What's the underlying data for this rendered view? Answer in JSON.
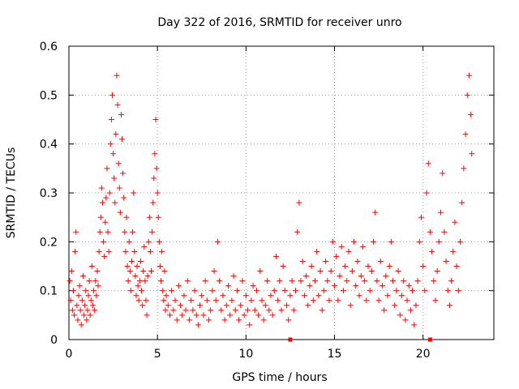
{
  "chart_data": {
    "type": "scatter",
    "title": "Day 322 of 2016, SRMTID for receiver unro",
    "xlabel": "GPS time / hours",
    "ylabel": "SRMTID / TECUs",
    "xlim": [
      0,
      24
    ],
    "ylim": [
      0,
      0.6
    ],
    "x_ticks": [
      0,
      5,
      10,
      15,
      20
    ],
    "x_tick_labels": [
      "0",
      "5",
      "10",
      "15",
      "20"
    ],
    "y_ticks": [
      0,
      0.1,
      0.2,
      0.3,
      0.4,
      0.5,
      0.6
    ],
    "y_tick_labels": [
      "0",
      "0.1",
      "0.2",
      "0.3",
      "0.4",
      "0.5",
      "0.6"
    ],
    "grid": true,
    "marker": "plus",
    "color": "#ff0000",
    "series": [
      {
        "name": "SRMTID",
        "points": [
          [
            0.05,
            0.12
          ],
          [
            0.1,
            0.08
          ],
          [
            0.15,
            0.14
          ],
          [
            0.2,
            0.06
          ],
          [
            0.25,
            0.1
          ],
          [
            0.3,
            0.05
          ],
          [
            0.35,
            0.18
          ],
          [
            0.4,
            0.22
          ],
          [
            0.45,
            0.07
          ],
          [
            0.5,
            0.04
          ],
          [
            0.55,
            0.09
          ],
          [
            0.6,
            0.11
          ],
          [
            0.65,
            0.06
          ],
          [
            0.7,
            0.03
          ],
          [
            0.75,
            0.08
          ],
          [
            0.8,
            0.13
          ],
          [
            0.85,
            0.05
          ],
          [
            0.9,
            0.07
          ],
          [
            0.95,
            0.1
          ],
          [
            1.0,
            0.04
          ],
          [
            1.05,
            0.06
          ],
          [
            1.1,
            0.09
          ],
          [
            1.15,
            0.12
          ],
          [
            1.2,
            0.05
          ],
          [
            1.25,
            0.08
          ],
          [
            1.3,
            0.15
          ],
          [
            1.35,
            0.07
          ],
          [
            1.4,
            0.1
          ],
          [
            1.45,
            0.06
          ],
          [
            1.5,
            0.12
          ],
          [
            1.55,
            0.09
          ],
          [
            1.6,
            0.14
          ],
          [
            1.65,
            0.11
          ],
          [
            1.7,
            0.18
          ],
          [
            1.75,
            0.22
          ],
          [
            1.8,
            0.25
          ],
          [
            1.85,
            0.31
          ],
          [
            1.9,
            0.28
          ],
          [
            1.95,
            0.2
          ],
          [
            2.0,
            0.17
          ],
          [
            2.05,
            0.24
          ],
          [
            2.1,
            0.29
          ],
          [
            2.15,
            0.35
          ],
          [
            2.2,
            0.22
          ],
          [
            2.25,
            0.18
          ],
          [
            2.3,
            0.3
          ],
          [
            2.35,
            0.4
          ],
          [
            2.4,
            0.45
          ],
          [
            2.45,
            0.5
          ],
          [
            2.5,
            0.38
          ],
          [
            2.55,
            0.33
          ],
          [
            2.6,
            0.28
          ],
          [
            2.65,
            0.42
          ],
          [
            2.7,
            0.54
          ],
          [
            2.75,
            0.48
          ],
          [
            2.8,
            0.36
          ],
          [
            2.85,
            0.31
          ],
          [
            2.9,
            0.26
          ],
          [
            2.95,
            0.46
          ],
          [
            3.0,
            0.41
          ],
          [
            3.05,
            0.34
          ],
          [
            3.1,
            0.29
          ],
          [
            3.15,
            0.22
          ],
          [
            3.2,
            0.18
          ],
          [
            3.25,
            0.25
          ],
          [
            3.3,
            0.15
          ],
          [
            3.35,
            0.12
          ],
          [
            3.4,
            0.2
          ],
          [
            3.45,
            0.14
          ],
          [
            3.5,
            0.1
          ],
          [
            3.55,
            0.16
          ],
          [
            3.6,
            0.22
          ],
          [
            3.65,
            0.3
          ],
          [
            3.7,
            0.18
          ],
          [
            3.75,
            0.13
          ],
          [
            3.8,
            0.09
          ],
          [
            3.85,
            0.15
          ],
          [
            3.9,
            0.11
          ],
          [
            3.95,
            0.08
          ],
          [
            4.0,
            0.12
          ],
          [
            4.05,
            0.16
          ],
          [
            4.1,
            0.1
          ],
          [
            4.15,
            0.07
          ],
          [
            4.2,
            0.14
          ],
          [
            4.25,
            0.19
          ],
          [
            4.3,
            0.12
          ],
          [
            4.35,
            0.08
          ],
          [
            4.4,
            0.05
          ],
          [
            4.45,
            0.13
          ],
          [
            4.5,
            0.2
          ],
          [
            4.55,
            0.25
          ],
          [
            4.6,
            0.18
          ],
          [
            4.65,
            0.14
          ],
          [
            4.7,
            0.22
          ],
          [
            4.75,
            0.28
          ],
          [
            4.8,
            0.33
          ],
          [
            4.85,
            0.38
          ],
          [
            4.9,
            0.45
          ],
          [
            4.95,
            0.35
          ],
          [
            5.0,
            0.3
          ],
          [
            5.05,
            0.25
          ],
          [
            5.1,
            0.2
          ],
          [
            5.15,
            0.15
          ],
          [
            5.2,
            0.12
          ],
          [
            5.25,
            0.18
          ],
          [
            5.3,
            0.1
          ],
          [
            5.35,
            0.08
          ],
          [
            5.4,
            0.14
          ],
          [
            5.45,
            0.06
          ],
          [
            5.5,
            0.09
          ],
          [
            5.6,
            0.07
          ],
          [
            5.7,
            0.05
          ],
          [
            5.8,
            0.1
          ],
          [
            5.9,
            0.06
          ],
          [
            6.0,
            0.08
          ],
          [
            6.1,
            0.04
          ],
          [
            6.2,
            0.11
          ],
          [
            6.3,
            0.07
          ],
          [
            6.4,
            0.05
          ],
          [
            6.5,
            0.09
          ],
          [
            6.6,
            0.06
          ],
          [
            6.7,
            0.12
          ],
          [
            6.8,
            0.04
          ],
          [
            6.9,
            0.08
          ],
          [
            7.0,
            0.06
          ],
          [
            7.1,
            0.1
          ],
          [
            7.2,
            0.05
          ],
          [
            7.3,
            0.03
          ],
          [
            7.4,
            0.07
          ],
          [
            7.5,
            0.09
          ],
          [
            7.6,
            0.05
          ],
          [
            7.7,
            0.12
          ],
          [
            7.8,
            0.08
          ],
          [
            7.9,
            0.04
          ],
          [
            8.0,
            0.06
          ],
          [
            8.1,
            0.1
          ],
          [
            8.2,
            0.14
          ],
          [
            8.3,
            0.08
          ],
          [
            8.4,
            0.2
          ],
          [
            8.5,
            0.12
          ],
          [
            8.6,
            0.06
          ],
          [
            8.7,
            0.09
          ],
          [
            8.8,
            0.04
          ],
          [
            8.9,
            0.07
          ],
          [
            9.0,
            0.11
          ],
          [
            9.1,
            0.05
          ],
          [
            9.2,
            0.08
          ],
          [
            9.3,
            0.13
          ],
          [
            9.4,
            0.06
          ],
          [
            9.5,
            0.1
          ],
          [
            9.6,
            0.04
          ],
          [
            9.7,
            0.07
          ],
          [
            9.8,
            0.12
          ],
          [
            9.9,
            0.05
          ],
          [
            10.0,
            0.09
          ],
          [
            10.1,
            0.06
          ],
          [
            10.2,
            0.03
          ],
          [
            10.3,
            0.08
          ],
          [
            10.4,
            0.11
          ],
          [
            10.5,
            0.06
          ],
          [
            10.6,
            0.1
          ],
          [
            10.7,
            0.05
          ],
          [
            10.8,
            0.14
          ],
          [
            10.9,
            0.08
          ],
          [
            11.0,
            0.04
          ],
          [
            11.1,
            0.07
          ],
          [
            11.2,
            0.12
          ],
          [
            11.3,
            0.06
          ],
          [
            11.4,
            0.09
          ],
          [
            11.5,
            0.05
          ],
          [
            11.6,
            0.1
          ],
          [
            11.7,
            0.17
          ],
          [
            11.8,
            0.08
          ],
          [
            11.9,
            0.12
          ],
          [
            12.0,
            0.06
          ],
          [
            12.1,
            0.15
          ],
          [
            12.2,
            0.1
          ],
          [
            12.3,
            0.07
          ],
          [
            12.4,
            0.04
          ],
          [
            12.5,
            0.09
          ],
          [
            12.6,
            0.12
          ],
          [
            12.7,
            0.06
          ],
          [
            12.8,
            0.1
          ],
          [
            12.9,
            0.22
          ],
          [
            13.0,
            0.28
          ],
          [
            13.1,
            0.12
          ],
          [
            13.2,
            0.16
          ],
          [
            13.3,
            0.09
          ],
          [
            13.4,
            0.13
          ],
          [
            13.5,
            0.07
          ],
          [
            13.6,
            0.11
          ],
          [
            13.7,
            0.15
          ],
          [
            13.8,
            0.08
          ],
          [
            13.9,
            0.12
          ],
          [
            14.0,
            0.18
          ],
          [
            14.1,
            0.09
          ],
          [
            14.2,
            0.14
          ],
          [
            14.3,
            0.06
          ],
          [
            14.4,
            0.1
          ],
          [
            14.5,
            0.16
          ],
          [
            14.6,
            0.12
          ],
          [
            14.7,
            0.08
          ],
          [
            14.8,
            0.14
          ],
          [
            14.9,
            0.2
          ],
          [
            15.0,
            0.11
          ],
          [
            15.1,
            0.17
          ],
          [
            15.2,
            0.08
          ],
          [
            15.3,
            0.13
          ],
          [
            15.4,
            0.19
          ],
          [
            15.5,
            0.1
          ],
          [
            15.6,
            0.15
          ],
          [
            15.7,
            0.12
          ],
          [
            15.8,
            0.18
          ],
          [
            15.9,
            0.07
          ],
          [
            16.0,
            0.14
          ],
          [
            16.1,
            0.2
          ],
          [
            16.2,
            0.11
          ],
          [
            16.3,
            0.16
          ],
          [
            16.4,
            0.09
          ],
          [
            16.5,
            0.13
          ],
          [
            16.6,
            0.19
          ],
          [
            16.7,
            0.12
          ],
          [
            16.8,
            0.08
          ],
          [
            16.9,
            0.15
          ],
          [
            17.0,
            0.1
          ],
          [
            17.1,
            0.14
          ],
          [
            17.2,
            0.2
          ],
          [
            17.3,
            0.26
          ],
          [
            17.4,
            0.12
          ],
          [
            17.5,
            0.08
          ],
          [
            17.6,
            0.16
          ],
          [
            17.7,
            0.11
          ],
          [
            17.8,
            0.06
          ],
          [
            17.9,
            0.13
          ],
          [
            18.0,
            0.09
          ],
          [
            18.1,
            0.15
          ],
          [
            18.2,
            0.2
          ],
          [
            18.3,
            0.12
          ],
          [
            18.4,
            0.07
          ],
          [
            18.5,
            0.1
          ],
          [
            18.6,
            0.14
          ],
          [
            18.7,
            0.05
          ],
          [
            18.8,
            0.09
          ],
          [
            18.9,
            0.12
          ],
          [
            19.0,
            0.04
          ],
          [
            19.1,
            0.08
          ],
          [
            19.2,
            0.11
          ],
          [
            19.3,
            0.06
          ],
          [
            19.4,
            0.1
          ],
          [
            19.5,
            0.03
          ],
          [
            19.6,
            0.07
          ],
          [
            19.7,
            0.12
          ],
          [
            19.8,
            0.2
          ],
          [
            19.9,
            0.25
          ],
          [
            20.0,
            0.15
          ],
          [
            20.1,
            0.1
          ],
          [
            20.2,
            0.3
          ],
          [
            20.3,
            0.36
          ],
          [
            20.4,
            0.22
          ],
          [
            20.5,
            0.18
          ],
          [
            20.6,
            0.12
          ],
          [
            20.7,
            0.08
          ],
          [
            20.8,
            0.14
          ],
          [
            20.9,
            0.2
          ],
          [
            21.0,
            0.26
          ],
          [
            21.1,
            0.34
          ],
          [
            21.2,
            0.22
          ],
          [
            21.3,
            0.16
          ],
          [
            21.4,
            0.1
          ],
          [
            21.5,
            0.07
          ],
          [
            21.6,
            0.12
          ],
          [
            21.7,
            0.18
          ],
          [
            21.8,
            0.24
          ],
          [
            21.9,
            0.15
          ],
          [
            22.0,
            0.1
          ],
          [
            22.1,
            0.2
          ],
          [
            22.2,
            0.28
          ],
          [
            22.3,
            0.35
          ],
          [
            22.4,
            0.42
          ],
          [
            22.5,
            0.5
          ],
          [
            22.6,
            0.54
          ],
          [
            22.7,
            0.46
          ],
          [
            22.75,
            0.38
          ]
        ]
      }
    ],
    "zero_markers": [
      [
        12.5,
        0
      ],
      [
        20.4,
        0
      ]
    ]
  }
}
